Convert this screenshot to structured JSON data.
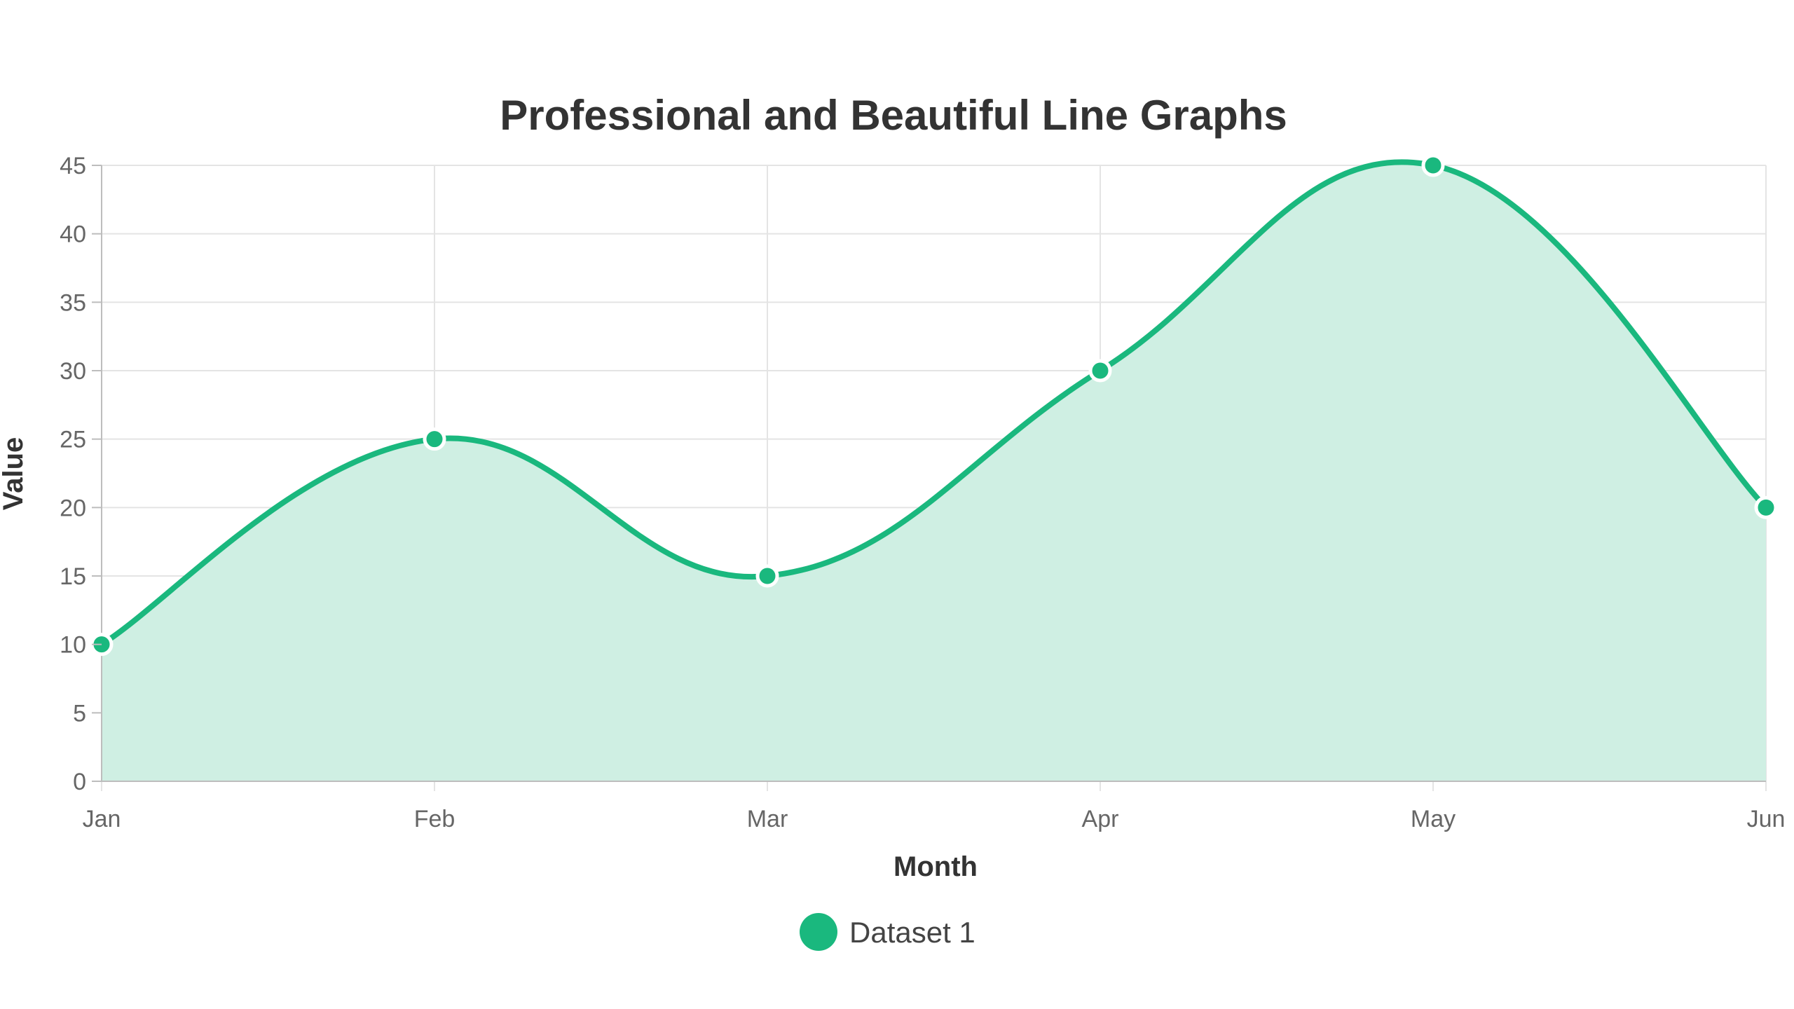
{
  "chart_data": {
    "type": "line",
    "title": "Professional and Beautiful Line Graphs",
    "xlabel": "Month",
    "ylabel": "Value",
    "categories": [
      "Jan",
      "Feb",
      "Mar",
      "Apr",
      "May",
      "Jun"
    ],
    "series": [
      {
        "name": "Dataset 1",
        "values": [
          10,
          25,
          15,
          30,
          45,
          20
        ],
        "color": "#1ab87e",
        "fill_color": "#cfefe3"
      }
    ],
    "ylim": [
      0,
      45
    ],
    "y_ticks": [
      "0",
      "5",
      "10",
      "15",
      "20",
      "25",
      "30",
      "35",
      "40",
      "45"
    ],
    "grid": true,
    "smooth": true,
    "filled": true,
    "legend": "bottom-center"
  }
}
